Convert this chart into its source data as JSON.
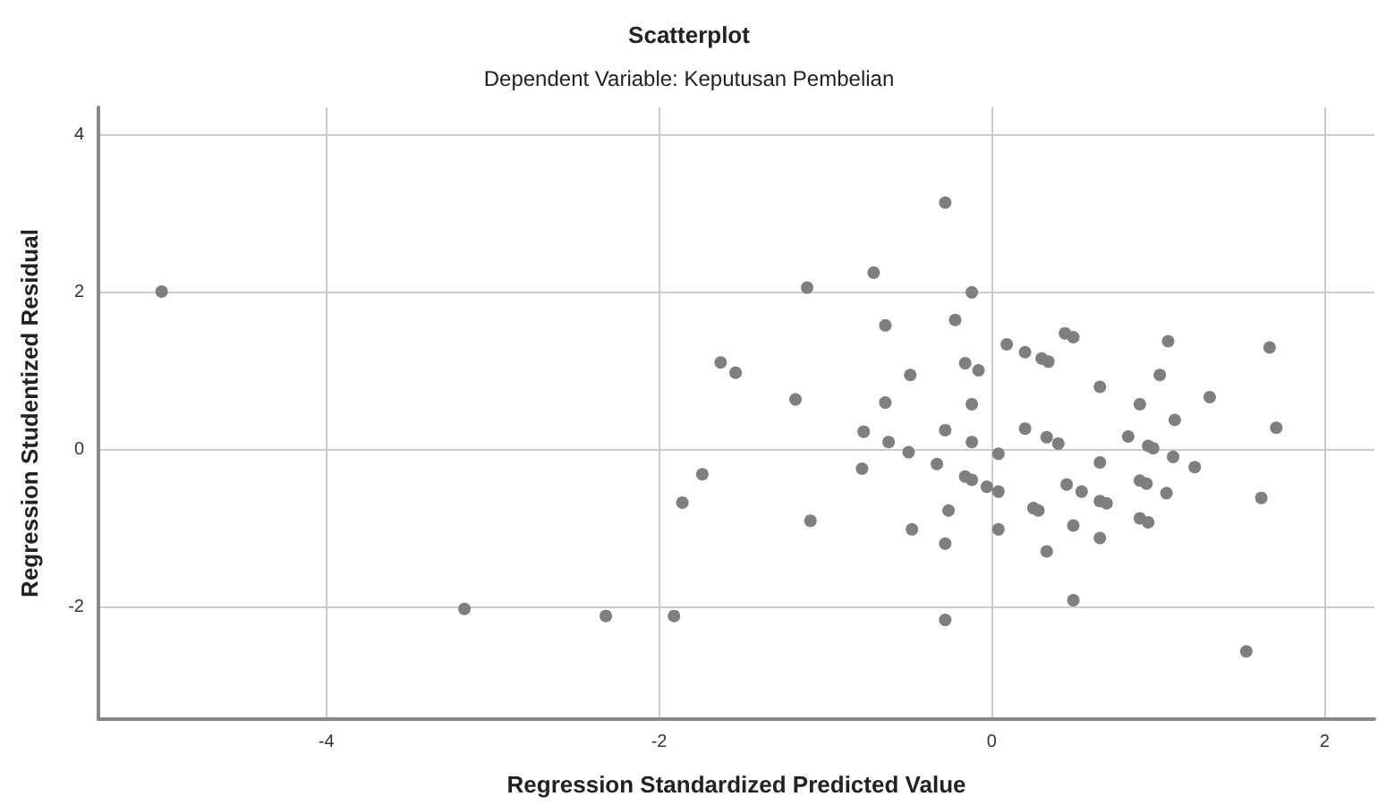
{
  "chart_data": {
    "type": "scatter",
    "title": "Scatterplot",
    "subtitle": "Dependent Variable: Keputusan Pembelian",
    "xlabel": "Regression Standardized Predicted Value",
    "ylabel": "Regression Studentized Residual",
    "x": [
      -4.99,
      -3.17,
      -2.32,
      -1.91,
      -1.63,
      -1.54,
      -1.74,
      -1.86,
      -0.28,
      -0.71,
      -1.11,
      -0.12,
      -0.64,
      -0.22,
      -1.18,
      -0.49,
      -0.64,
      -0.16,
      -0.08,
      -0.12,
      0.09,
      0.2,
      0.3,
      0.34,
      0.44,
      0.49,
      1.06,
      1.67,
      0.65,
      1.01,
      1.31,
      0.89,
      1.1,
      1.71,
      -0.77,
      -0.62,
      -0.5,
      -0.28,
      -0.12,
      0.04,
      0.2,
      0.33,
      0.4,
      0.82,
      0.94,
      0.97,
      1.09,
      1.22,
      -1.09,
      -0.78,
      -0.33,
      -0.16,
      -0.12,
      -0.03,
      0.04,
      -0.26,
      -0.48,
      -0.28,
      0.04,
      0.25,
      0.28,
      0.45,
      0.54,
      0.65,
      0.65,
      0.69,
      0.49,
      0.33,
      0.65,
      0.89,
      0.93,
      1.05,
      0.89,
      0.94,
      1.62,
      0.49,
      -0.28,
      1.53
    ],
    "values": [
      2.01,
      -2.02,
      -2.11,
      -2.11,
      1.11,
      0.98,
      -0.31,
      -0.67,
      3.14,
      2.25,
      2.06,
      2.0,
      1.58,
      1.65,
      0.64,
      0.95,
      0.6,
      1.1,
      1.01,
      0.58,
      1.34,
      1.24,
      1.16,
      1.12,
      1.48,
      1.43,
      1.38,
      1.3,
      0.8,
      0.95,
      0.67,
      0.58,
      0.38,
      0.28,
      0.23,
      0.1,
      -0.03,
      0.25,
      0.1,
      -0.05,
      0.27,
      0.16,
      0.08,
      0.17,
      0.05,
      0.02,
      -0.09,
      -0.22,
      -0.9,
      -0.24,
      -0.18,
      -0.34,
      -0.38,
      -0.47,
      -0.53,
      -0.77,
      -1.01,
      -1.19,
      -1.01,
      -0.74,
      -0.77,
      -0.44,
      -0.53,
      -0.16,
      -0.65,
      -0.68,
      -0.96,
      -1.29,
      -1.12,
      -0.39,
      -0.43,
      -0.55,
      -0.87,
      -0.92,
      -0.61,
      -1.91,
      -2.16,
      -2.56
    ],
    "color": "#7f7f7f",
    "marker": "circle",
    "xlim": [
      -5.37,
      2.3
    ],
    "ylim": [
      -3.42,
      4.35
    ],
    "xticks": [
      -4,
      -2,
      0,
      2
    ],
    "yticks": [
      -2,
      0,
      2,
      4
    ],
    "grid": true
  }
}
